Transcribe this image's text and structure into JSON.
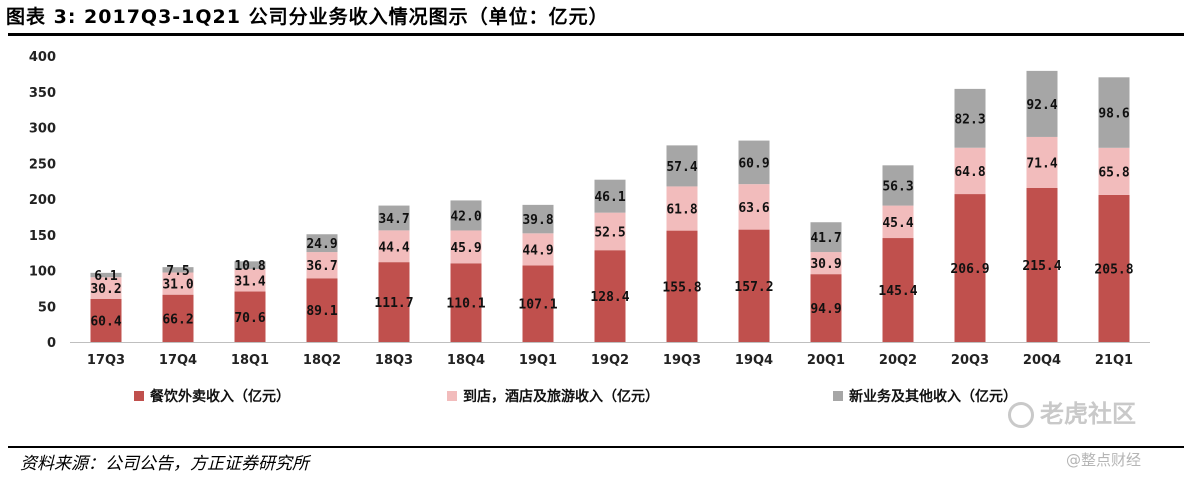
{
  "title": "图表 3: 2017Q3-1Q21 公司分业务收入情况图示（单位：亿元）",
  "source": "资料来源：公司公告，方正证券研究所",
  "watermark": "老虎社区",
  "watermark_sub": "@整点财经",
  "colors": {
    "series1": "#c0504d",
    "series2": "#f2bcbc",
    "series3": "#a6a6a6"
  },
  "chart_data": {
    "type": "bar",
    "stacked": true,
    "categories": [
      "17Q3",
      "17Q4",
      "18Q1",
      "18Q2",
      "18Q3",
      "18Q4",
      "19Q1",
      "19Q2",
      "19Q3",
      "19Q4",
      "20Q1",
      "20Q2",
      "20Q3",
      "20Q4",
      "21Q1"
    ],
    "series": [
      {
        "name": "餐饮外卖收入（亿元）",
        "values": [
          60.4,
          66.2,
          70.6,
          89.1,
          111.7,
          110.1,
          107.1,
          128.4,
          155.8,
          157.2,
          94.9,
          145.4,
          206.9,
          215.4,
          205.8
        ]
      },
      {
        "name": "到店，酒店及旅游收入（亿元）",
        "values": [
          30.2,
          31.0,
          31.4,
          36.7,
          44.4,
          45.9,
          44.9,
          52.5,
          61.8,
          63.6,
          30.9,
          45.4,
          64.8,
          71.4,
          65.8
        ]
      },
      {
        "name": "新业务及其他收入（亿元）",
        "values": [
          6.1,
          7.5,
          10.8,
          24.9,
          34.7,
          42.0,
          39.8,
          46.1,
          57.4,
          60.9,
          41.7,
          56.3,
          82.3,
          92.4,
          98.6
        ]
      }
    ],
    "yticks": [
      0,
      50,
      100,
      150,
      200,
      250,
      300,
      350,
      400
    ],
    "ylim": [
      0,
      400
    ],
    "grid": false,
    "legend_position": "bottom"
  }
}
